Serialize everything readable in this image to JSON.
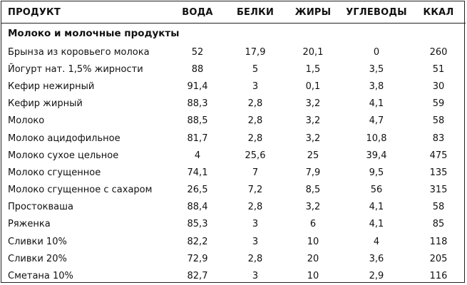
{
  "table": {
    "headers": [
      "ПРОДУКТ",
      "ВОДА",
      "БЕЛКИ",
      "ЖИРЫ",
      "УГЛЕВОДЫ",
      "ККАЛ"
    ],
    "group": "Молоко и молочные продукты",
    "rows": [
      [
        "Брынза из коровьего молока",
        "52",
        "17,9",
        "20,1",
        "0",
        "260"
      ],
      [
        "Йогурт нат. 1,5% жирности",
        "88",
        "5",
        "1,5",
        "3,5",
        "51"
      ],
      [
        "Кефир нежирный",
        "91,4",
        "3",
        "0,1",
        "3,8",
        "30"
      ],
      [
        "Кефир жирный",
        "88,3",
        "2,8",
        "3,2",
        "4,1",
        "59"
      ],
      [
        "Молоко",
        "88,5",
        "2,8",
        "3,2",
        "4,7",
        "58"
      ],
      [
        "Молоко ацидофильное",
        "81,7",
        "2,8",
        "3,2",
        "10,8",
        "83"
      ],
      [
        "Молоко сухое цельное",
        "4",
        "25,6",
        "25",
        "39,4",
        "475"
      ],
      [
        "Молоко сгущенное",
        "74,1",
        "7",
        "7,9",
        "9,5",
        "135"
      ],
      [
        "Молоко сгущенное с сахаром",
        "26,5",
        "7,2",
        "8,5",
        "56",
        "315"
      ],
      [
        "Простокваша",
        "88,4",
        "2,8",
        "3,2",
        "4,1",
        "58"
      ],
      [
        "Ряженка",
        "85,3",
        "3",
        "6",
        "4,1",
        "85"
      ],
      [
        "Сливки 10%",
        "82,2",
        "3",
        "10",
        "4",
        "118"
      ],
      [
        "Сливки 20%",
        "72,9",
        "2,8",
        "20",
        "3,6",
        "205"
      ],
      [
        "Сметана 10%",
        "82,7",
        "3",
        "10",
        "2,9",
        "116"
      ]
    ]
  }
}
